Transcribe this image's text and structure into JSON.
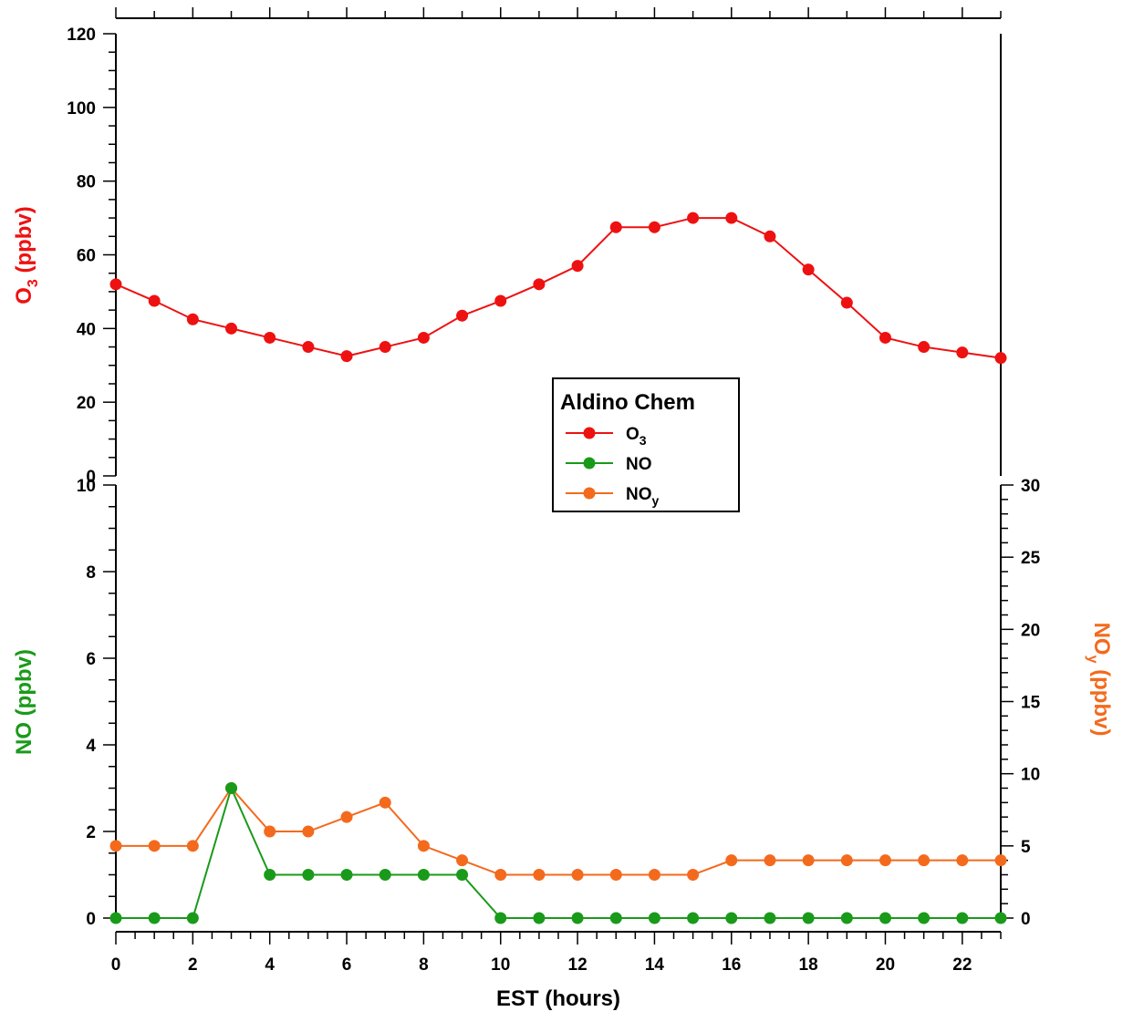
{
  "chart_data": {
    "type": "line",
    "x": [
      0,
      1,
      2,
      3,
      4,
      5,
      6,
      7,
      8,
      9,
      10,
      11,
      12,
      13,
      14,
      15,
      16,
      17,
      18,
      19,
      20,
      21,
      22,
      23
    ],
    "xlabel": "EST (hours)",
    "xlim": [
      0,
      23
    ],
    "x_ticks": [
      "0",
      "2",
      "4",
      "6",
      "8",
      "10",
      "12",
      "14",
      "16",
      "18",
      "20",
      "22"
    ],
    "panels": [
      {
        "position": "top",
        "ylabel": "O",
        "ylabel_sub": "3",
        "ylabel_suffix": " (ppbv)",
        "ylim": [
          0,
          120
        ],
        "y_ticks": [
          "0",
          "20",
          "40",
          "60",
          "80",
          "100",
          "120"
        ],
        "series": [
          {
            "name": "O",
            "name_sub": "3",
            "color": "#ee1111",
            "axis": "left",
            "values": [
              52,
              47.5,
              42.5,
              40,
              37.5,
              35,
              32.5,
              35,
              37.5,
              43.5,
              47.5,
              52,
              57,
              67.5,
              67.5,
              70,
              70,
              65,
              56,
              47,
              37.5,
              35,
              33.5,
              32
            ]
          }
        ]
      },
      {
        "position": "bottom",
        "ylabel_left": "NO (ppbv)",
        "ylim_left": [
          0,
          10
        ],
        "y_ticks_left": [
          "0",
          "2",
          "4",
          "6",
          "8",
          "10"
        ],
        "ylabel_right": "NO",
        "ylabel_right_sub": "y",
        "ylabel_right_suffix": " (ppbv)",
        "ylim_right": [
          0,
          30
        ],
        "y_ticks_right": [
          "0",
          "5",
          "10",
          "15",
          "20",
          "25",
          "30"
        ],
        "series": [
          {
            "name": "NO",
            "color": "#1a9a1a",
            "axis": "left",
            "values": [
              0,
              0,
              0,
              3,
              1,
              1,
              1,
              1,
              1,
              1,
              0,
              0,
              0,
              0,
              0,
              0,
              0,
              0,
              0,
              0,
              0,
              0,
              0,
              0
            ]
          },
          {
            "name": "NO",
            "name_sub": "y",
            "color": "#f36a1d",
            "axis": "right",
            "values": [
              5,
              5,
              5,
              9,
              6,
              6,
              7,
              8,
              5,
              4,
              3,
              3,
              3,
              3,
              3,
              3,
              4,
              4,
              4,
              4,
              4,
              4,
              4,
              4
            ]
          }
        ]
      }
    ],
    "legend": {
      "title": "Aldino Chem",
      "placement": "center"
    }
  }
}
